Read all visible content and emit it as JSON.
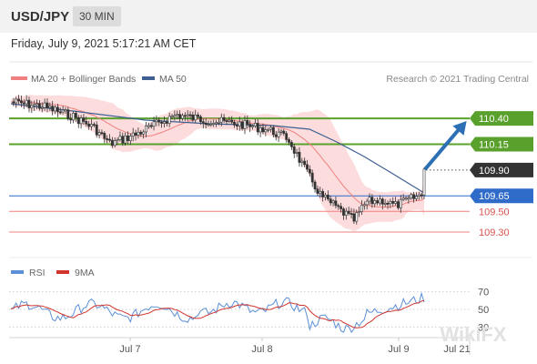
{
  "header": {
    "symbol": "USD/JPY",
    "timeframe": "30 MIN"
  },
  "datetime": "Friday, July 9, 2021 5:17:21 AM CET",
  "legend": {
    "ma20": "MA 20 + Bollinger Bands",
    "ma50": "MA 50",
    "credit": "Research © 2021 Trading Central"
  },
  "rsi_legend": {
    "rsi": "RSI",
    "ma9": "9MA"
  },
  "watermark": "WikiFX",
  "colors": {
    "resistance": "#5aa02c",
    "support": "#2f6bc9",
    "target": "#f08080",
    "ma20": "#f08080",
    "ma50": "#3d5f91",
    "band": "#fbd6d6",
    "arrow": "#2d6fb5",
    "rsi": "#5b8fd6",
    "rsi_ma": "#d0342c"
  },
  "chart_data": {
    "type": "candlestick",
    "x_labels": [
      "Jul 7",
      "Jul 8",
      "Jul 9",
      "Jul 21"
    ],
    "ylim": [
      109.15,
      110.7
    ],
    "levels": [
      {
        "value": 110.4,
        "label": "110.40",
        "kind": "resistance"
      },
      {
        "value": 110.15,
        "label": "110.15",
        "kind": "resistance"
      },
      {
        "value": 109.9,
        "label": "109.90",
        "kind": "last"
      },
      {
        "value": 109.65,
        "label": "109.65",
        "kind": "support"
      },
      {
        "value": 109.5,
        "label": "109.50",
        "kind": "target"
      },
      {
        "value": 109.3,
        "label": "109.30",
        "kind": "target"
      }
    ],
    "projection": {
      "from": 109.9,
      "to": 110.4
    },
    "rsi": {
      "ylim": [
        20,
        80
      ],
      "ticks": [
        70,
        50,
        30
      ]
    }
  }
}
